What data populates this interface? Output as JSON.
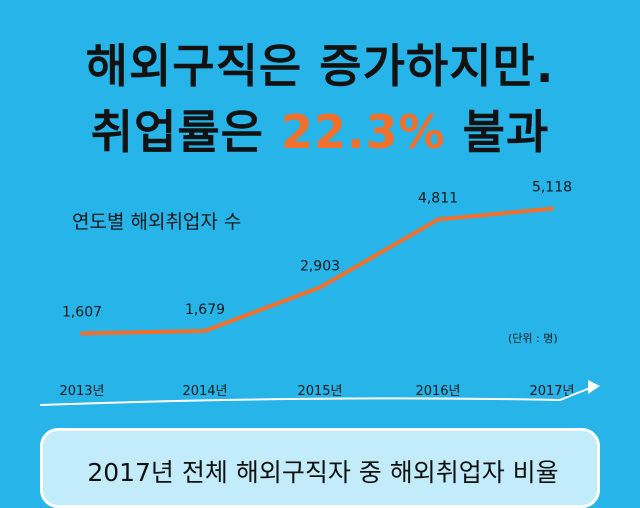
{
  "headline": {
    "line1": "해외구직은 증가하지만.",
    "line2_prefix": "취업률은 ",
    "line2_highlight": "22.3%",
    "line2_suffix": " 불과"
  },
  "chart_data": {
    "type": "line",
    "title": "연도별 해외취업자 수",
    "unit_note": "(단위 : 명)",
    "categories": [
      "2013년",
      "2014년",
      "2015년",
      "2016년",
      "2017년"
    ],
    "values": [
      1607,
      1679,
      2903,
      4811,
      5118
    ],
    "value_labels": [
      "1,607",
      "1,679",
      "2,903",
      "4,811",
      "5,118"
    ],
    "line_color": "#f0702c",
    "ylim": [
      1000,
      5500
    ],
    "grid": false,
    "legend": "none"
  },
  "panel": {
    "text": "2017년 전체 해외구직자 중 해외취업자 비율"
  },
  "colors": {
    "background": "#27b4e9",
    "accent": "#f0702c",
    "text": "#121212"
  }
}
